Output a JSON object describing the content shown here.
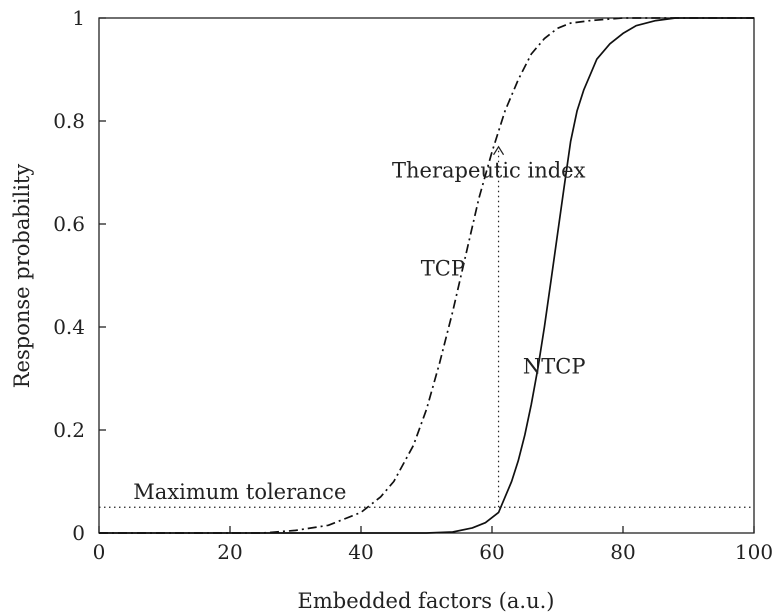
{
  "chart_data": {
    "type": "line",
    "xlabel": "Embedded factors (a.u.)",
    "ylabel": "Response probability",
    "xlim": [
      0,
      100
    ],
    "ylim": [
      0,
      1
    ],
    "x_ticks": [
      0,
      20,
      40,
      60,
      80,
      100
    ],
    "y_ticks": [
      0,
      0.2,
      0.4,
      0.6,
      0.8,
      1
    ],
    "x_tick_labels": [
      "0",
      "20",
      "40",
      "60",
      "80",
      "100"
    ],
    "y_tick_labels": [
      "0",
      "0.2",
      "0.4",
      "0.6",
      "0.8",
      "1"
    ],
    "grid": false,
    "series": [
      {
        "name": "TCP",
        "style": "dash-dot",
        "x": [
          0,
          25,
          30,
          35,
          40,
          43,
          45,
          48,
          50,
          52,
          54,
          56,
          58,
          60,
          62,
          64,
          66,
          68,
          70,
          72,
          75,
          80,
          85,
          88,
          100
        ],
        "y": [
          0,
          0,
          0.005,
          0.015,
          0.04,
          0.07,
          0.1,
          0.17,
          0.24,
          0.33,
          0.43,
          0.54,
          0.65,
          0.74,
          0.82,
          0.88,
          0.93,
          0.96,
          0.98,
          0.99,
          0.995,
          1,
          1,
          1,
          1
        ]
      },
      {
        "name": "NTCP",
        "style": "solid",
        "x": [
          0,
          50,
          54,
          57,
          59,
          61,
          62,
          63,
          64,
          65,
          66,
          67,
          68,
          69,
          70,
          71,
          72,
          73,
          74,
          75,
          76,
          78,
          80,
          82,
          85,
          88,
          100
        ],
        "y": [
          0,
          0,
          0.002,
          0.01,
          0.02,
          0.04,
          0.07,
          0.1,
          0.14,
          0.19,
          0.25,
          0.32,
          0.4,
          0.49,
          0.58,
          0.67,
          0.76,
          0.82,
          0.86,
          0.89,
          0.92,
          0.95,
          0.97,
          0.985,
          0.995,
          1,
          1
        ]
      }
    ],
    "reference_lines": [
      {
        "name": "Maximum tolerance",
        "orientation": "horizontal",
        "y": 0.05,
        "x_range": [
          0,
          100
        ],
        "style": "dotted"
      },
      {
        "name": "Therapeutic index",
        "orientation": "vertical",
        "x": 61,
        "y_range": [
          0.05,
          0.75
        ],
        "style": "dotted",
        "arrow_up": true
      }
    ],
    "annotations": [
      {
        "id": "therapeutic",
        "text": "Therapeutic index",
        "x": 59.5,
        "y": 0.69
      },
      {
        "id": "tcp",
        "text": "TCP",
        "x": 52.5,
        "y": 0.5
      },
      {
        "id": "ntcp",
        "text": "NTCP",
        "x": 69.5,
        "y": 0.31
      },
      {
        "id": "max_tol",
        "text": "Maximum tolerance",
        "x": 21.5,
        "y": 0.066
      }
    ]
  }
}
